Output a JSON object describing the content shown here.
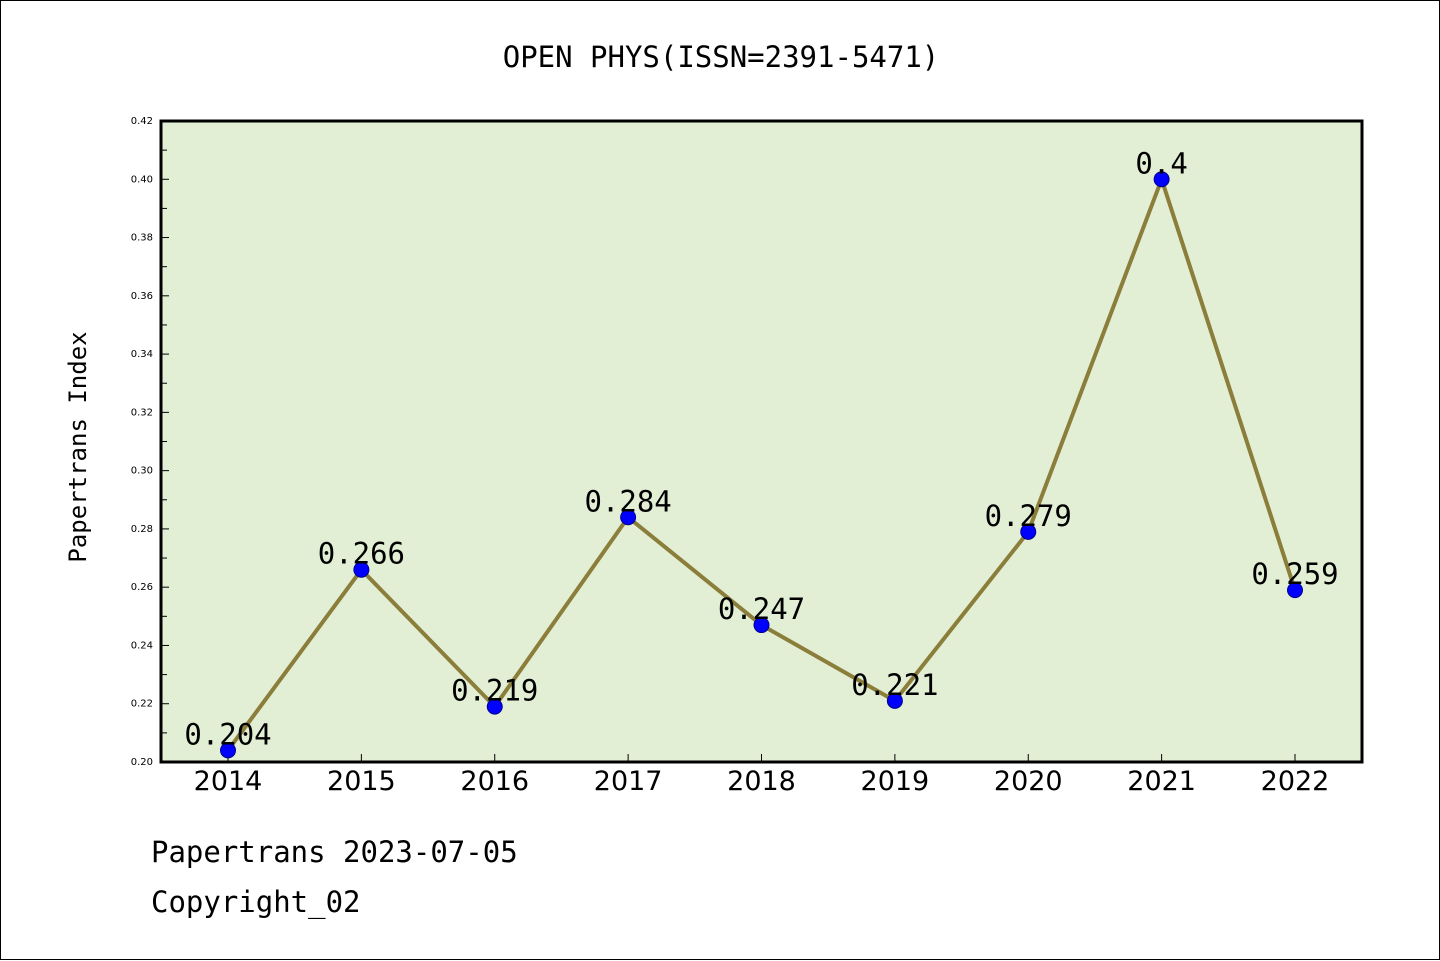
{
  "chart_data": {
    "type": "line",
    "title": "OPEN PHYS(ISSN=2391-5471)",
    "xlabel": "",
    "ylabel": "Papertrans Index",
    "categories": [
      "2014",
      "2015",
      "2016",
      "2017",
      "2018",
      "2019",
      "2020",
      "2021",
      "2022"
    ],
    "series": [
      {
        "values": [
          0.204,
          0.266,
          0.219,
          0.284,
          0.247,
          0.221,
          0.279,
          0.4,
          0.259
        ],
        "data_labels": [
          "0.204",
          "0.266",
          "0.219",
          "0.284",
          "0.247",
          "0.221",
          "0.279",
          "0.4",
          "0.259"
        ]
      }
    ],
    "ylim": [
      0.2,
      0.42
    ],
    "yticks": [
      "0.20",
      "0.22",
      "0.24",
      "0.26",
      "0.28",
      "0.30",
      "0.32",
      "0.34",
      "0.36",
      "0.38",
      "0.40",
      "0.42"
    ],
    "grid": false,
    "colors": {
      "plot_background": "#e2efd5",
      "line": "#8b7d3a",
      "marker": "#0000ff"
    }
  },
  "footer": {
    "line1": "Papertrans 2023-07-05",
    "line2": "Copyright_02"
  }
}
